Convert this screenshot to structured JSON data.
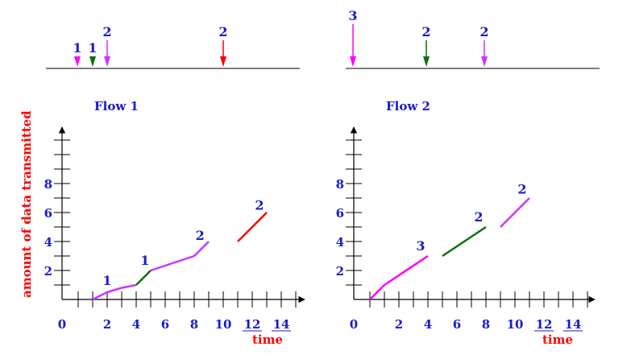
{
  "colors": {
    "label": "#1a1acc",
    "red": "#ff0000",
    "magenta": "#ff00ff",
    "violet": "#cc33ff",
    "green": "#0d6e0d",
    "axis": "#000000"
  },
  "y_axis_title": "amount of data transmitted",
  "arrivals": [
    {
      "timeline": "left",
      "events": [
        {
          "label": "1",
          "color": "magenta"
        },
        {
          "label": "1",
          "color": "green"
        },
        {
          "label": "2",
          "color": "violet"
        },
        {
          "label": "2",
          "color": "red"
        }
      ]
    },
    {
      "timeline": "right",
      "events": [
        {
          "label": "3",
          "color": "magenta"
        },
        {
          "label": "2",
          "color": "green"
        },
        {
          "label": "2",
          "color": "violet"
        }
      ]
    }
  ],
  "chart_data": [
    {
      "type": "line",
      "title": "Flow 1",
      "xlabel": "time",
      "x_ticks_labels": [
        "0",
        "2",
        "4",
        "6",
        "8",
        "10",
        "12",
        "14"
      ],
      "y_ticks_labels": [
        "2",
        "4",
        "6",
        "8"
      ],
      "xlim": [
        0,
        14
      ],
      "ylim": [
        0,
        11
      ],
      "series": [
        {
          "color": "violet",
          "points": [
            [
              1,
              0
            ],
            [
              2,
              0.5
            ],
            [
              3,
              0.8
            ],
            [
              4,
              1.0
            ]
          ]
        },
        {
          "color": "green",
          "points": [
            [
              4,
              1.0
            ],
            [
              5,
              2.0
            ]
          ]
        },
        {
          "color": "violet",
          "points": [
            [
              5,
              2.0
            ],
            [
              8,
              3.0
            ],
            [
              9,
              4.0
            ]
          ]
        },
        {
          "color": "red",
          "points": [
            [
              11,
              4.0
            ],
            [
              13,
              6.0
            ]
          ]
        }
      ],
      "annotations": [
        {
          "text": "1",
          "x": 2,
          "y": 1.0
        },
        {
          "text": "1",
          "x": 4.6,
          "y": 2.4
        },
        {
          "text": "2",
          "x": 8.4,
          "y": 4.1
        },
        {
          "text": "2",
          "x": 12.5,
          "y": 6.2
        }
      ]
    },
    {
      "type": "line",
      "title": "Flow 2",
      "xlabel": "time",
      "x_ticks_labels": [
        "0",
        "2",
        "4",
        "6",
        "8",
        "10",
        "12",
        "14"
      ],
      "y_ticks_labels": [
        "2",
        "4",
        "6",
        "8"
      ],
      "xlim": [
        0,
        14
      ],
      "ylim": [
        0,
        11
      ],
      "series": [
        {
          "color": "magenta",
          "points": [
            [
              0,
              0
            ],
            [
              1,
              1
            ],
            [
              4,
              3
            ]
          ]
        },
        {
          "color": "green",
          "points": [
            [
              5,
              3
            ],
            [
              8,
              5
            ]
          ]
        },
        {
          "color": "violet",
          "points": [
            [
              9,
              5
            ],
            [
              11,
              7
            ]
          ]
        }
      ],
      "annotations": [
        {
          "text": "3",
          "x": 3.5,
          "y": 3.4
        },
        {
          "text": "2",
          "x": 7.5,
          "y": 5.4
        },
        {
          "text": "2",
          "x": 10.5,
          "y": 7.3
        }
      ]
    }
  ]
}
